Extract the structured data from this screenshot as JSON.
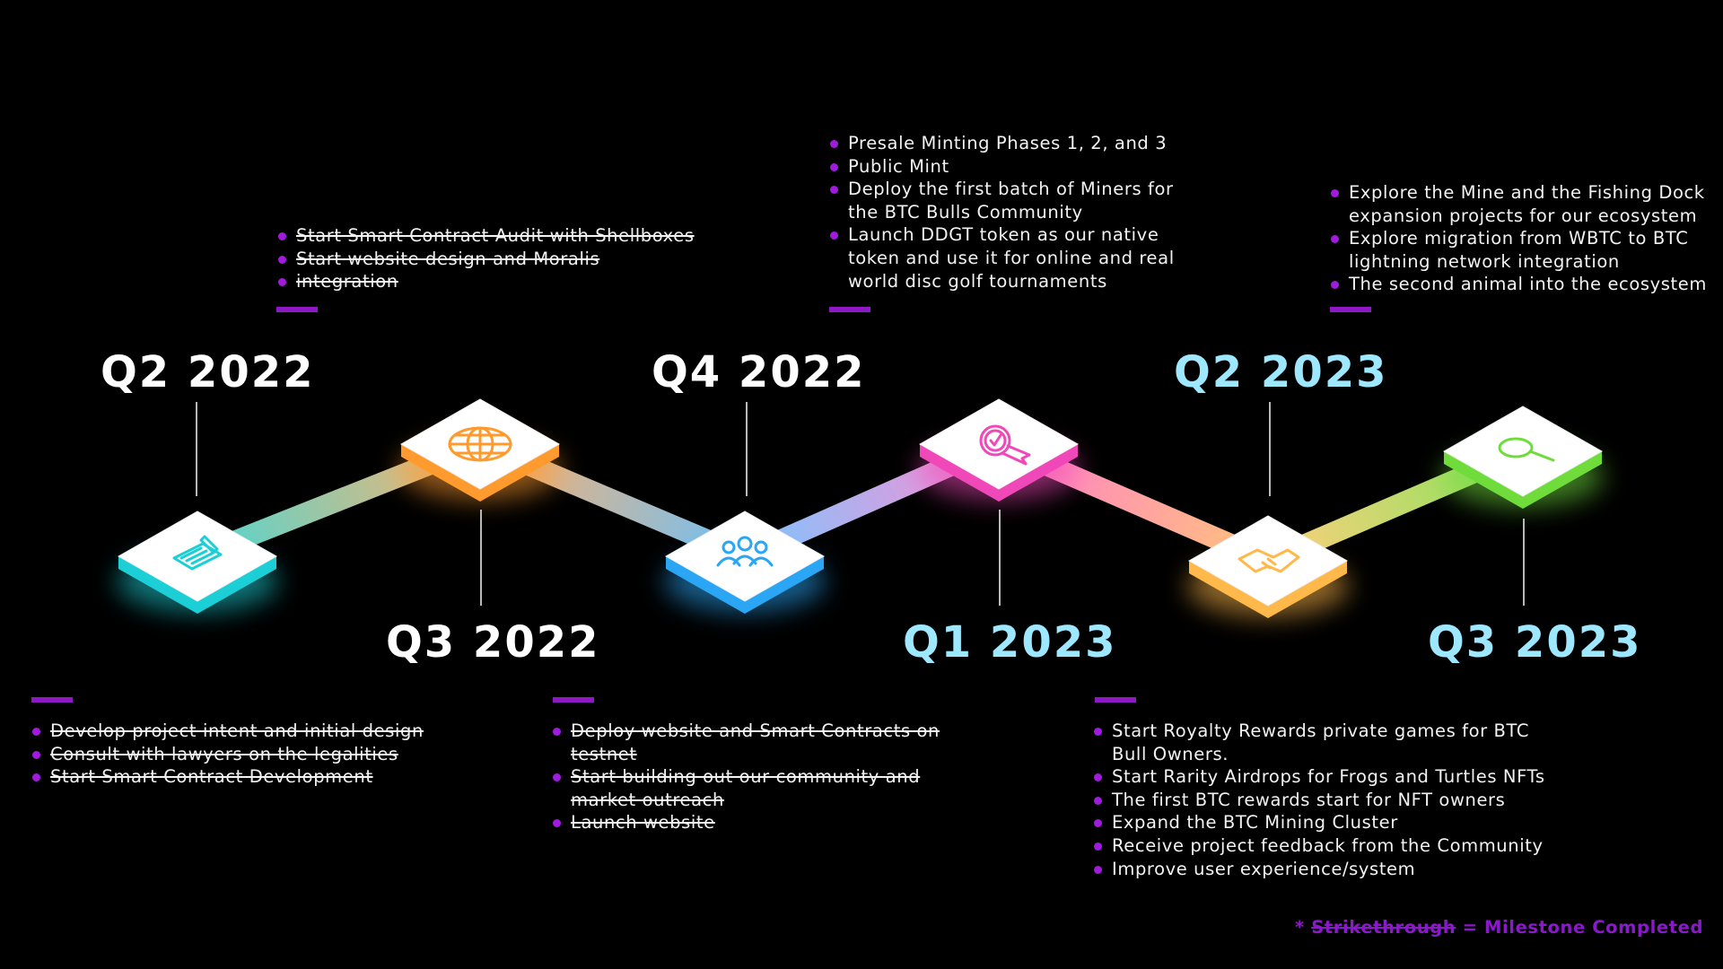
{
  "colors": {
    "background": "#000000",
    "bullet": "#a11bdf",
    "label_white": "#ffffff",
    "label_cyan": "#9de8ff",
    "legend": "#8a19c9"
  },
  "milestones": [
    {
      "quarter": "Q2 2022",
      "node_color": "#1ccfd6",
      "icon": "document-pen-icon",
      "completed": true,
      "items": [
        "Develop project intent and initial design",
        "Consult with lawyers on the legalities",
        "Start Smart Contract Development"
      ]
    },
    {
      "quarter": "Q3 2022",
      "node_color": "#ff9a2e",
      "icon": "globe-icon",
      "completed": true,
      "items": [
        "Start Smart Contract Audit with Shellboxes",
        "Start website design and Moralis",
        "integration"
      ]
    },
    {
      "quarter": "Q4 2022",
      "node_color": "#2aa6f5",
      "icon": "community-icon",
      "completed": true,
      "items": [
        "Deploy website and Smart Contracts on",
        "testnet",
        "Start building out our community and",
        "market outreach",
        "Launch website"
      ]
    },
    {
      "quarter": "Q1 2023",
      "node_color": "#f048b8",
      "icon": "award-badge-icon",
      "completed": false,
      "items": [
        "Presale Minting Phases 1, 2, and 3",
        "Public Mint",
        "Deploy the first batch of Miners for",
        "the BTC Bulls Community",
        "Launch DDGT token as our native",
        "token and use it for online and real",
        "world disc golf tournaments"
      ]
    },
    {
      "quarter": "Q2 2023",
      "node_color": "#ffb84a",
      "icon": "handshake-icon",
      "completed": false,
      "items": [
        "Start Royalty Rewards private games for BTC",
        "Bull Owners.",
        "Start Rarity Airdrops for Frogs and Turtles NFTs",
        "The first BTC rewards start for NFT owners",
        "Expand the BTC Mining Cluster",
        "Receive project feedback from the Community",
        "Improve user experience/system"
      ]
    },
    {
      "quarter": "Q3 2023",
      "node_color": "#6fdc3c",
      "icon": "magnifier-icon",
      "completed": false,
      "items": [
        "Explore the Mine and the Fishing Dock",
        "expansion projects for our ecosystem",
        "Explore migration from WBTC to BTC",
        "lightning network integration",
        "The second animal into the ecosystem"
      ]
    }
  ],
  "legend": {
    "marker": "*",
    "strike_word": "Strikethrough",
    "rest": " = Milestone Completed"
  }
}
